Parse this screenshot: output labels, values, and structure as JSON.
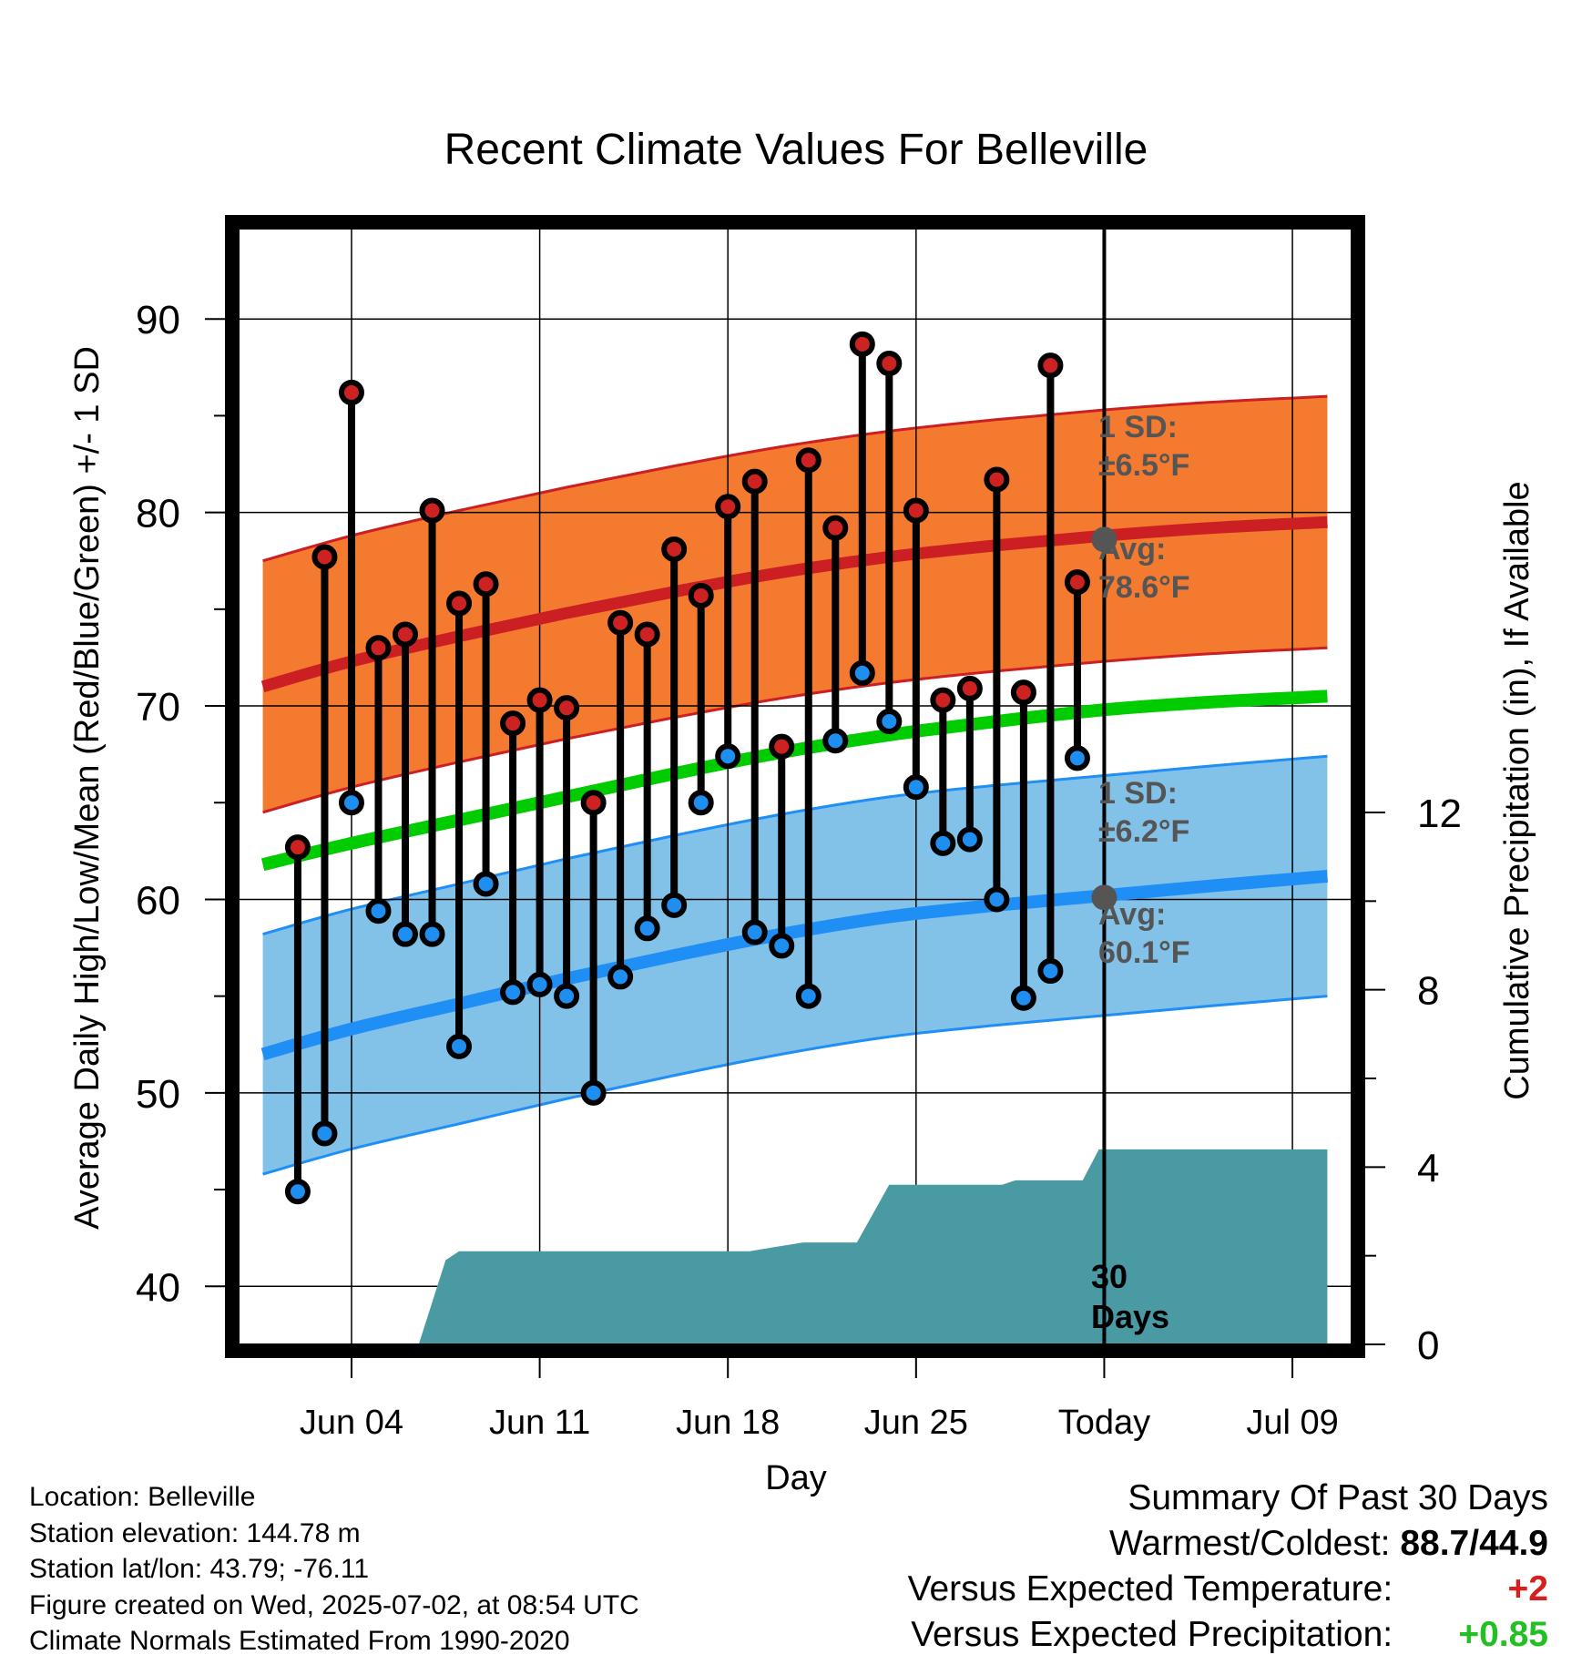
{
  "chart_data": {
    "type": "line",
    "title": "Recent Climate Values For Belleville",
    "xlabel": "Day",
    "ylabel": "Average Daily High/Low/Mean (Red/Blue/Green) +/- 1 SD",
    "y2label": "Cumulative Precipitation (in), If Available",
    "ylim": [
      37,
      95
    ],
    "y2lim": [
      0,
      12
    ],
    "yticks": [
      40,
      50,
      60,
      70,
      80,
      90
    ],
    "y2ticks": [
      0,
      4,
      8,
      12
    ],
    "xlim": [
      -4.2,
      37.2
    ],
    "xtick_positions": [
      0,
      7,
      14,
      21,
      28,
      35
    ],
    "xtick_labels": [
      "Jun 04",
      "Jun 11",
      "Jun 18",
      "Jun 25",
      "Today",
      "Jul 09"
    ],
    "grid": true,
    "today_line": 28,
    "days": [
      -2,
      -1,
      0,
      1,
      2,
      3,
      4,
      5,
      6,
      7,
      8,
      9,
      10,
      11,
      12,
      13,
      14,
      15,
      16,
      17,
      18,
      19,
      20,
      21,
      22,
      23,
      24,
      25,
      26,
      27
    ],
    "high": [
      62.7,
      77.7,
      86.2,
      73.0,
      73.7,
      80.1,
      75.3,
      76.3,
      69.1,
      70.3,
      69.9,
      65.0,
      74.3,
      73.7,
      78.1,
      75.7,
      80.3,
      81.6,
      67.9,
      82.7,
      79.2,
      88.7,
      87.7,
      80.1,
      70.3,
      70.9,
      81.7,
      70.7,
      87.6,
      76.4
    ],
    "low": [
      44.9,
      47.9,
      65.0,
      59.4,
      58.2,
      58.2,
      52.4,
      60.8,
      55.2,
      55.6,
      55.0,
      50.0,
      56.0,
      58.5,
      59.7,
      65.0,
      67.4,
      58.3,
      57.6,
      55.0,
      68.2,
      71.7,
      69.2,
      65.8,
      62.9,
      63.1,
      60.0,
      54.9,
      56.3,
      67.3
    ],
    "normals": {
      "x": [
        -3.3,
        0,
        4,
        8,
        12,
        16,
        20,
        24,
        28,
        32,
        36.3
      ],
      "high_avg": [
        71.0,
        72.3,
        73.6,
        74.8,
        75.9,
        76.9,
        77.7,
        78.3,
        78.8,
        79.2,
        79.5
      ],
      "high_sd": 6.5,
      "mean_avg": [
        61.8,
        62.9,
        64.1,
        65.3,
        66.5,
        67.6,
        68.5,
        69.2,
        69.8,
        70.2,
        70.5
      ],
      "low_avg": [
        52.0,
        53.3,
        54.6,
        55.9,
        57.1,
        58.2,
        59.1,
        59.7,
        60.2,
        60.7,
        61.2
      ],
      "low_sd": 6.2
    },
    "precip": {
      "x": [
        -3.3,
        2.5,
        3.5,
        4.0,
        5.0,
        14.8,
        15.8,
        16.8,
        17.8,
        18.8,
        20.0,
        20.6,
        21.2,
        24.2,
        24.7,
        25.2,
        27.2,
        27.8,
        28.0,
        30.0,
        36.3
      ],
      "y": [
        0,
        0,
        1.9,
        2.1,
        2.1,
        2.1,
        2.2,
        2.3,
        2.3,
        2.3,
        3.6,
        3.6,
        3.6,
        3.6,
        3.7,
        3.7,
        3.7,
        4.4,
        4.4,
        4.4,
        4.4
      ]
    },
    "annotations": {
      "high_sd_label": "1 SD:",
      "high_sd_value": "±6.5°F",
      "high_avg_label": "Avg:",
      "high_avg_value": "78.6°F",
      "low_sd_label": "1 SD:",
      "low_sd_value": "±6.2°F",
      "low_avg_label": "Avg:",
      "low_avg_value": "60.1°F",
      "today_avg_high": 78.6,
      "today_avg_low": 60.1,
      "window_label_1": "30",
      "window_label_2": "Days"
    },
    "colors": {
      "high_band": "#f47a2f",
      "high_line": "#cc1f24",
      "mean_line": "#00cc00",
      "low_band": "#83c2e8",
      "low_line": "#1f8ef5",
      "precip": "#4a9aa4",
      "high_marker": "#cc2222",
      "low_marker": "#1e8ef0",
      "annotation": "#555555"
    }
  },
  "info": {
    "location": "Location: Belleville",
    "elevation": "Station elevation: 144.78 m",
    "latlon": "Station lat/lon: 43.79; -76.11",
    "created": "Figure created on Wed, 2025-07-02, at 08:54 UTC",
    "normals": "Climate Normals Estimated From 1990-2020"
  },
  "summary": {
    "title": "Summary Of Past 30 Days",
    "warm_cold_label": "Warmest/Coldest:",
    "warm_cold_value": "88.7/44.9",
    "temp_label": "Versus Expected Temperature:",
    "temp_value": "+2",
    "precip_label": "Versus Expected Precipitation:",
    "precip_value": "+0.85"
  }
}
